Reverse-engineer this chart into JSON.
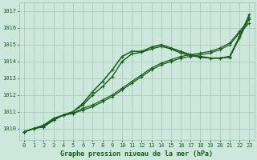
{
  "background_color": "#cce8dc",
  "plot_bg_color": "#cce8dc",
  "grid_color": "#aaccbb",
  "line_color": "#1a5c1a",
  "title": "Graphe pression niveau de la mer (hPa)",
  "ylabel_values": [
    1010,
    1011,
    1012,
    1013,
    1014,
    1015,
    1016,
    1017
  ],
  "ylim": [
    1009.3,
    1017.5
  ],
  "xlim": [
    -0.5,
    23.5
  ],
  "series": [
    [
      1009.8,
      1010.0,
      1010.1,
      1010.5,
      1010.8,
      1010.9,
      1011.2,
      1011.4,
      1011.7,
      1012.0,
      1012.4,
      1012.8,
      1013.2,
      1013.6,
      1013.9,
      1014.1,
      1014.3,
      1014.4,
      1014.5,
      1014.6,
      1014.8,
      1015.1,
      1015.8,
      1016.5
    ],
    [
      1009.8,
      1010.0,
      1010.1,
      1010.5,
      1010.8,
      1010.9,
      1011.1,
      1011.3,
      1011.6,
      1011.9,
      1012.3,
      1012.7,
      1013.1,
      1013.5,
      1013.8,
      1014.0,
      1014.2,
      1014.3,
      1014.4,
      1014.5,
      1014.7,
      1015.0,
      1015.7,
      1016.3
    ],
    [
      1009.8,
      1010.0,
      1010.2,
      1010.6,
      1010.8,
      1011.0,
      1011.5,
      1012.2,
      1012.8,
      1013.5,
      1014.3,
      1014.6,
      1014.6,
      1014.85,
      1015.0,
      1014.8,
      1014.6,
      1014.4,
      1014.3,
      1014.2,
      1014.2,
      1014.3,
      1015.5,
      1016.8
    ],
    [
      1009.8,
      1010.0,
      1010.15,
      1010.55,
      1010.8,
      1011.0,
      1011.4,
      1012.0,
      1012.5,
      1013.1,
      1014.0,
      1014.45,
      1014.55,
      1014.75,
      1014.9,
      1014.75,
      1014.5,
      1014.35,
      1014.25,
      1014.2,
      1014.2,
      1014.25,
      1015.4,
      1016.6
    ]
  ]
}
